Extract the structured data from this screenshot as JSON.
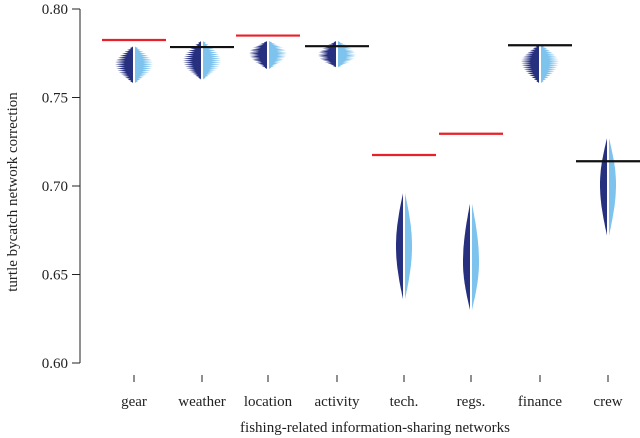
{
  "chart_data": {
    "type": "violin",
    "title": "",
    "xlabel": "fishing-related information-sharing networks",
    "ylabel": "turtle bycatch network correction",
    "ylim": [
      0.6,
      0.8
    ],
    "yticks": [
      "0.60",
      "0.65",
      "0.70",
      "0.75",
      "0.80"
    ],
    "categories": [
      "gear",
      "weather",
      "location",
      "activity",
      "tech.",
      "regs.",
      "finance",
      "crew"
    ],
    "colors": {
      "left_half": "#26307f",
      "right_half": "#7ec3ee",
      "reference_above": "#e8202a",
      "reference_within": "#111111"
    },
    "violins": [
      {
        "category": "gear",
        "center": 0.769,
        "min": 0.758,
        "max": 0.779,
        "reference": 0.7825,
        "reference_color": "red",
        "jagged": true
      },
      {
        "category": "weather",
        "center": 0.771,
        "min": 0.76,
        "max": 0.782,
        "reference": 0.7785,
        "reference_color": "black",
        "jagged": true
      },
      {
        "category": "location",
        "center": 0.775,
        "min": 0.766,
        "max": 0.782,
        "reference": 0.785,
        "reference_color": "red",
        "jagged": true
      },
      {
        "category": "activity",
        "center": 0.774,
        "min": 0.767,
        "max": 0.782,
        "reference": 0.779,
        "reference_color": "black",
        "jagged": true
      },
      {
        "category": "tech.",
        "center": 0.666,
        "min": 0.636,
        "max": 0.696,
        "reference": 0.7175,
        "reference_color": "red",
        "jagged": false
      },
      {
        "category": "regs.",
        "center": 0.657,
        "min": 0.63,
        "max": 0.69,
        "reference": 0.7295,
        "reference_color": "red",
        "jagged": false
      },
      {
        "category": "finance",
        "center": 0.77,
        "min": 0.758,
        "max": 0.78,
        "reference": 0.7795,
        "reference_color": "black",
        "jagged": true
      },
      {
        "category": "crew",
        "center": 0.701,
        "min": 0.672,
        "max": 0.727,
        "reference": 0.714,
        "reference_color": "black",
        "jagged": false
      }
    ]
  }
}
